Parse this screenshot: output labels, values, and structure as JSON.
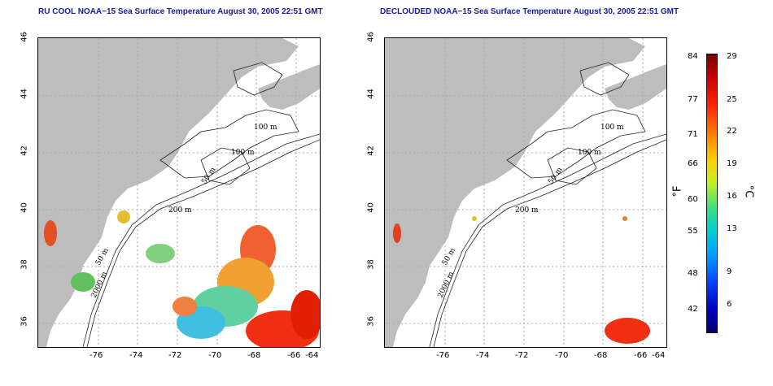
{
  "panels": [
    {
      "title": "RU COOL NOAA−15 Sea Surface Temperature August 30, 2005 22:51 GMT"
    },
    {
      "title": "DECLOUDED NOAA−15 Sea Surface Temperature August 30, 2005 22:51 GMT"
    }
  ],
  "axes": {
    "lat_ticks": [
      "46",
      "44",
      "42",
      "40",
      "38",
      "36"
    ],
    "lon_ticks": [
      "-76",
      "-74",
      "-72",
      "-70",
      "-68",
      "-66",
      "-64"
    ]
  },
  "contours": {
    "labels": [
      "100 m",
      "100 m",
      "50 m",
      "200 m",
      "50 m",
      "2000 m"
    ]
  },
  "colorbar": {
    "f_label": "°F",
    "c_label": "°C",
    "f_ticks": [
      "84",
      "77",
      "71",
      "66",
      "60",
      "55",
      "48",
      "42"
    ],
    "c_ticks": [
      "29",
      "25",
      "22",
      "19",
      "16",
      "13",
      "9",
      "6"
    ]
  },
  "colors": {
    "land": "#bdbdbd",
    "title": "#1a1a9c",
    "grid": "#aaaaaa"
  }
}
